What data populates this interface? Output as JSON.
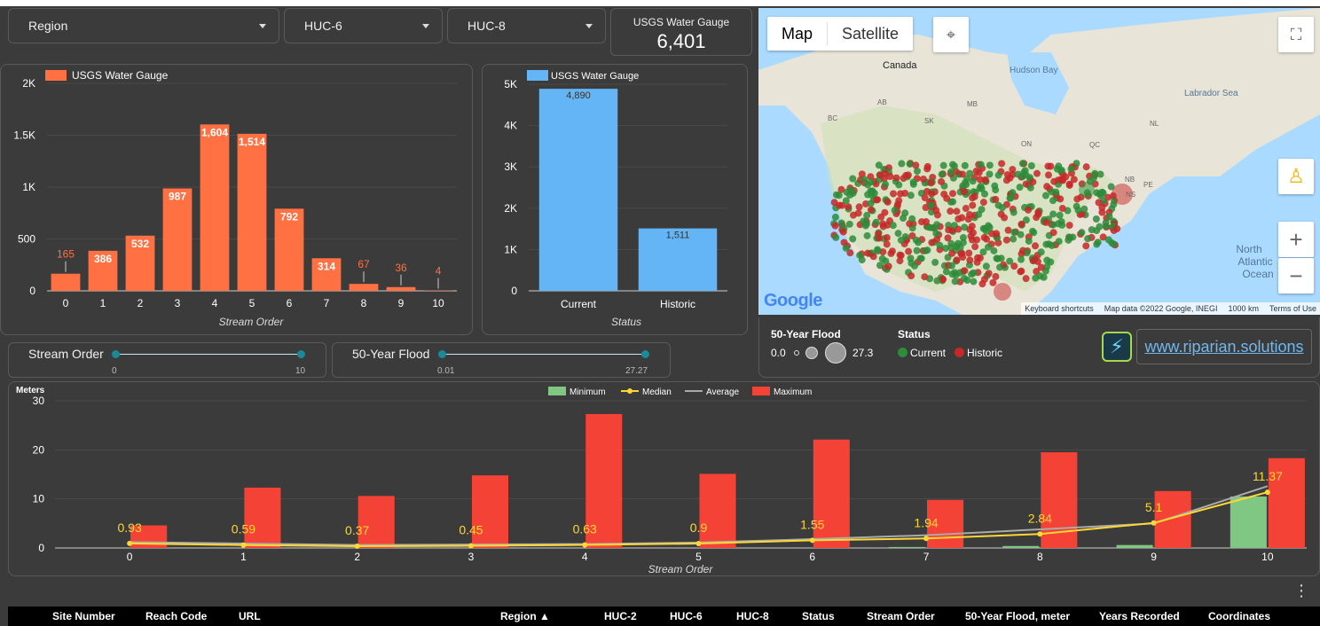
{
  "filters": {
    "region": "Region",
    "huc6": "HUC-6",
    "huc8": "HUC-8"
  },
  "kpi": {
    "title": "USGS Water Gauge",
    "value": "6,401"
  },
  "colors": {
    "orange": "#ff7043",
    "blue": "#64b5f6",
    "green": "#81c784",
    "red": "#f44336",
    "median": "#fdd835",
    "average": "#aaaaaa",
    "current": "#2e8b3a",
    "historic": "#c62828",
    "slider": "#1a8a99",
    "link": "#6fb8f0"
  },
  "stream_chart": {
    "legend": "USGS Water Gauge",
    "xlabel": "Stream Order",
    "y_ticks": [
      "0",
      "500",
      "1K",
      "1.5K",
      "2K"
    ],
    "value_labels": [
      "165",
      "386",
      "532",
      "987",
      "1,604",
      "1,514",
      "792",
      "314",
      "67",
      "36",
      "4"
    ]
  },
  "status_chart": {
    "legend": "USGS Water Gauge",
    "xlabel": "Status",
    "y_ticks": [
      "0",
      "1K",
      "2K",
      "3K",
      "4K",
      "5K"
    ],
    "value_labels": [
      "4,890",
      "1,511"
    ]
  },
  "map": {
    "map_button": "Map",
    "satellite_button": "Satellite",
    "labels": {
      "canada": "Canada",
      "hudson_bay": "Hudson Bay",
      "labrador_sea": "Labrador Sea",
      "north": "North",
      "atlantic": "Atlantic",
      "ocean": "Ocean",
      "ab": "AB",
      "bc": "BC",
      "sk": "SK",
      "mb": "MB",
      "on": "ON",
      "qc": "QC",
      "nl": "NL",
      "nb": "NB",
      "pe": "PE",
      "ns": "NS"
    },
    "google": "Google",
    "attribution": {
      "shortcuts": "Keyboard shortcuts",
      "data": "Map data ©2022 Google, INEGI",
      "scale": "1000 km",
      "terms": "Terms of Use"
    }
  },
  "map_legend": {
    "flood_title": "50-Year Flood",
    "flood_min": "0.0",
    "flood_max": "27.3",
    "status_title": "Status",
    "current": "Current",
    "historic": "Historic"
  },
  "sliders": {
    "stream_order": {
      "title": "Stream Order",
      "min": "0",
      "max": "10"
    },
    "flood": {
      "title": "50-Year Flood",
      "min": "0.01",
      "max": "27.27"
    }
  },
  "link": "www.riparian.solutions",
  "bottom_chart": {
    "ylabel": "Meters",
    "xlabel": "Stream Order",
    "y_ticks": [
      "0",
      "10",
      "20",
      "30"
    ],
    "legend": [
      "Minimum",
      "Median",
      "Average",
      "Maximum"
    ],
    "median_labels": [
      "0.93",
      "0.59",
      "0.37",
      "0.45",
      "0.63",
      "0.9",
      "1.55",
      "1.94",
      "2.84",
      "5.1",
      "11.37"
    ]
  },
  "table": {
    "columns": [
      "Site Number",
      "Reach Code",
      "URL",
      "Region ▲",
      "HUC-2",
      "HUC-6",
      "HUC-8",
      "Status",
      "Stream Order",
      "50-Year Flood, meter",
      "Years Recorded",
      "Coordinates"
    ],
    "menu_icon": "⋮"
  },
  "chart_data": [
    {
      "type": "bar",
      "categories": [
        "0",
        "1",
        "2",
        "3",
        "4",
        "5",
        "6",
        "7",
        "8",
        "9",
        "10"
      ],
      "series": [
        {
          "name": "USGS Water Gauge",
          "values": [
            165,
            386,
            532,
            987,
            1604,
            1514,
            792,
            314,
            67,
            36,
            4
          ]
        }
      ],
      "xlabel": "Stream Order",
      "ylim": [
        0,
        2000
      ]
    },
    {
      "type": "bar",
      "categories": [
        "Current",
        "Historic"
      ],
      "series": [
        {
          "name": "USGS Water Gauge",
          "values": [
            4890,
            1511
          ]
        }
      ],
      "xlabel": "Status",
      "ylim": [
        0,
        5000
      ]
    },
    {
      "type": "bar",
      "categories": [
        "0",
        "1",
        "2",
        "3",
        "4",
        "5",
        "6",
        "7",
        "8",
        "9",
        "10"
      ],
      "series": [
        {
          "name": "Minimum",
          "type": "bar",
          "values": [
            0,
            0,
            0,
            0,
            0,
            0,
            0,
            0.2,
            0.4,
            0.6,
            10.5
          ]
        },
        {
          "name": "Median",
          "type": "line",
          "values": [
            0.93,
            0.59,
            0.37,
            0.45,
            0.63,
            0.9,
            1.55,
            1.94,
            2.84,
            5.1,
            11.37
          ]
        },
        {
          "name": "Average",
          "type": "line",
          "values": [
            1.2,
            0.9,
            0.6,
            0.7,
            0.8,
            1.1,
            1.8,
            2.6,
            3.8,
            5.0,
            12.6
          ]
        },
        {
          "name": "Maximum",
          "type": "bar",
          "values": [
            4.6,
            12.3,
            10.6,
            14.8,
            27.3,
            15.1,
            22.1,
            9.8,
            19.5,
            11.6,
            18.3
          ]
        }
      ],
      "xlabel": "Stream Order",
      "ylabel": "Meters",
      "ylim": [
        0,
        30
      ]
    }
  ]
}
